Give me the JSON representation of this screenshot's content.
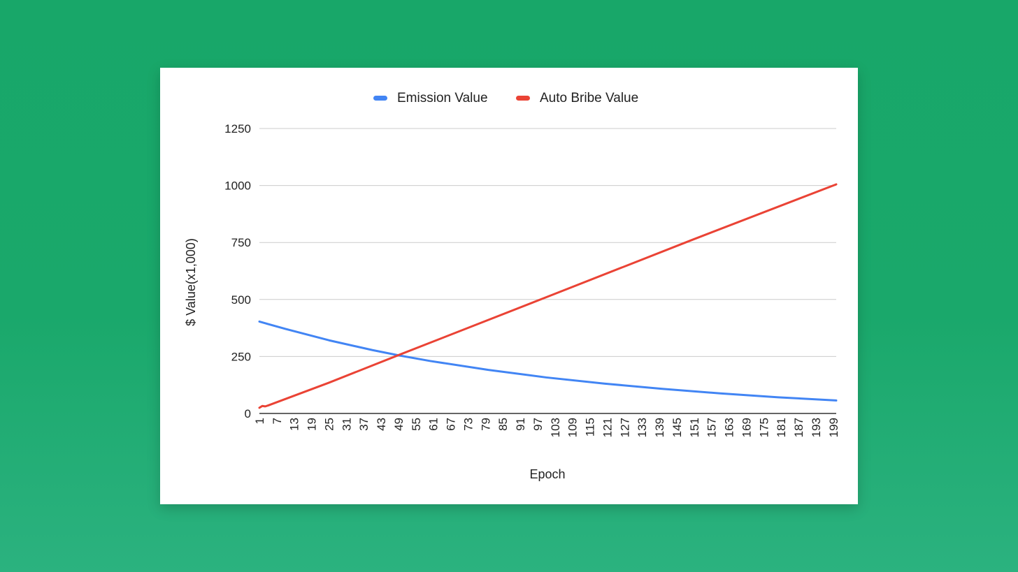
{
  "chart_data": {
    "type": "line",
    "title": "",
    "xlabel": "Epoch",
    "ylabel": "$ Value(x1,000)",
    "x_range": [
      1,
      200
    ],
    "ylim": [
      0,
      1250
    ],
    "y_ticks": [
      "0",
      "250",
      "500",
      "750",
      "1000",
      "1250"
    ],
    "x_tick_labels": [
      "1",
      "7",
      "13",
      "19",
      "25",
      "31",
      "37",
      "43",
      "49",
      "55",
      "61",
      "67",
      "73",
      "79",
      "85",
      "91",
      "97",
      "103",
      "109",
      "115",
      "121",
      "127",
      "133",
      "139",
      "145",
      "151",
      "157",
      "163",
      "169",
      "175",
      "181",
      "187",
      "193",
      "199"
    ],
    "grid": true,
    "legend_position": "top",
    "series": [
      {
        "name": "Emission Value",
        "color": "#4285f4",
        "x": [
          1,
          10,
          25,
          40,
          49,
          60,
          80,
          100,
          120,
          140,
          160,
          180,
          200
        ],
        "values": [
          403,
          371,
          321,
          278,
          255,
          230,
          191,
          158,
          131,
          108,
          88,
          71,
          57
        ]
      },
      {
        "name": "Auto Bribe Value",
        "color": "#ea4335",
        "x": [
          1,
          2,
          3,
          4,
          25,
          49,
          100,
          150,
          200
        ],
        "values": [
          25,
          33,
          31,
          35,
          135,
          256,
          510,
          760,
          1005
        ]
      }
    ]
  }
}
